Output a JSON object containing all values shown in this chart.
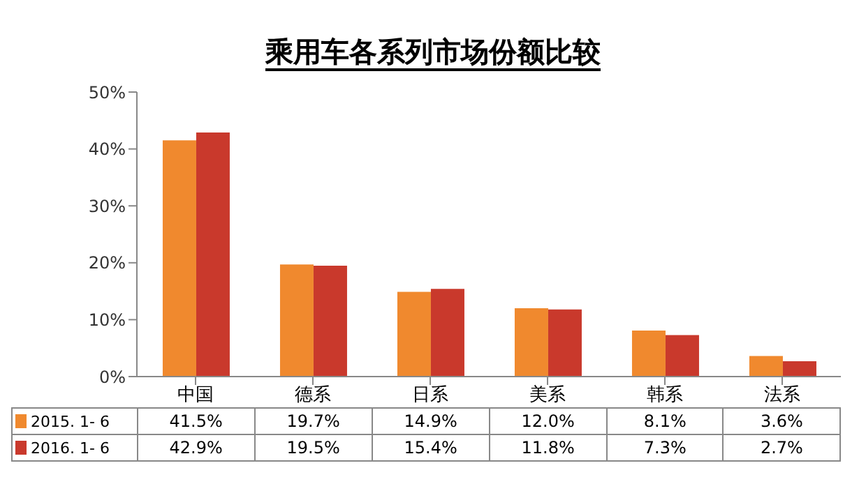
{
  "chart_data": {
    "type": "bar",
    "title": "乘用车各系列市场份额比较",
    "categories": [
      "中国",
      "德系",
      "日系",
      "美系",
      "韩系",
      "法系"
    ],
    "series": [
      {
        "name": "2015. 1- 6",
        "color": "#f0892e",
        "values": [
          41.5,
          19.7,
          14.9,
          12.0,
          8.1,
          3.6
        ],
        "value_labels": [
          "41.5%",
          "19.7%",
          "14.9%",
          "12.0%",
          "8.1%",
          "3.6%"
        ]
      },
      {
        "name": "2016. 1- 6",
        "color": "#c9392c",
        "values": [
          42.9,
          19.5,
          15.4,
          11.8,
          7.3,
          2.7
        ],
        "value_labels": [
          "42.9%",
          "19.5%",
          "15.4%",
          "11.8%",
          "7.3%",
          "2.7%"
        ]
      }
    ],
    "ylim": [
      0,
      50
    ],
    "yticks": [
      {
        "value": 0,
        "label": "0%"
      },
      {
        "value": 10,
        "label": "10%"
      },
      {
        "value": 20,
        "label": "20%"
      },
      {
        "value": 30,
        "label": "30%"
      },
      {
        "value": 40,
        "label": "40%"
      },
      {
        "value": 50,
        "label": "50%"
      }
    ],
    "grid": false,
    "legend": "bottom"
  }
}
